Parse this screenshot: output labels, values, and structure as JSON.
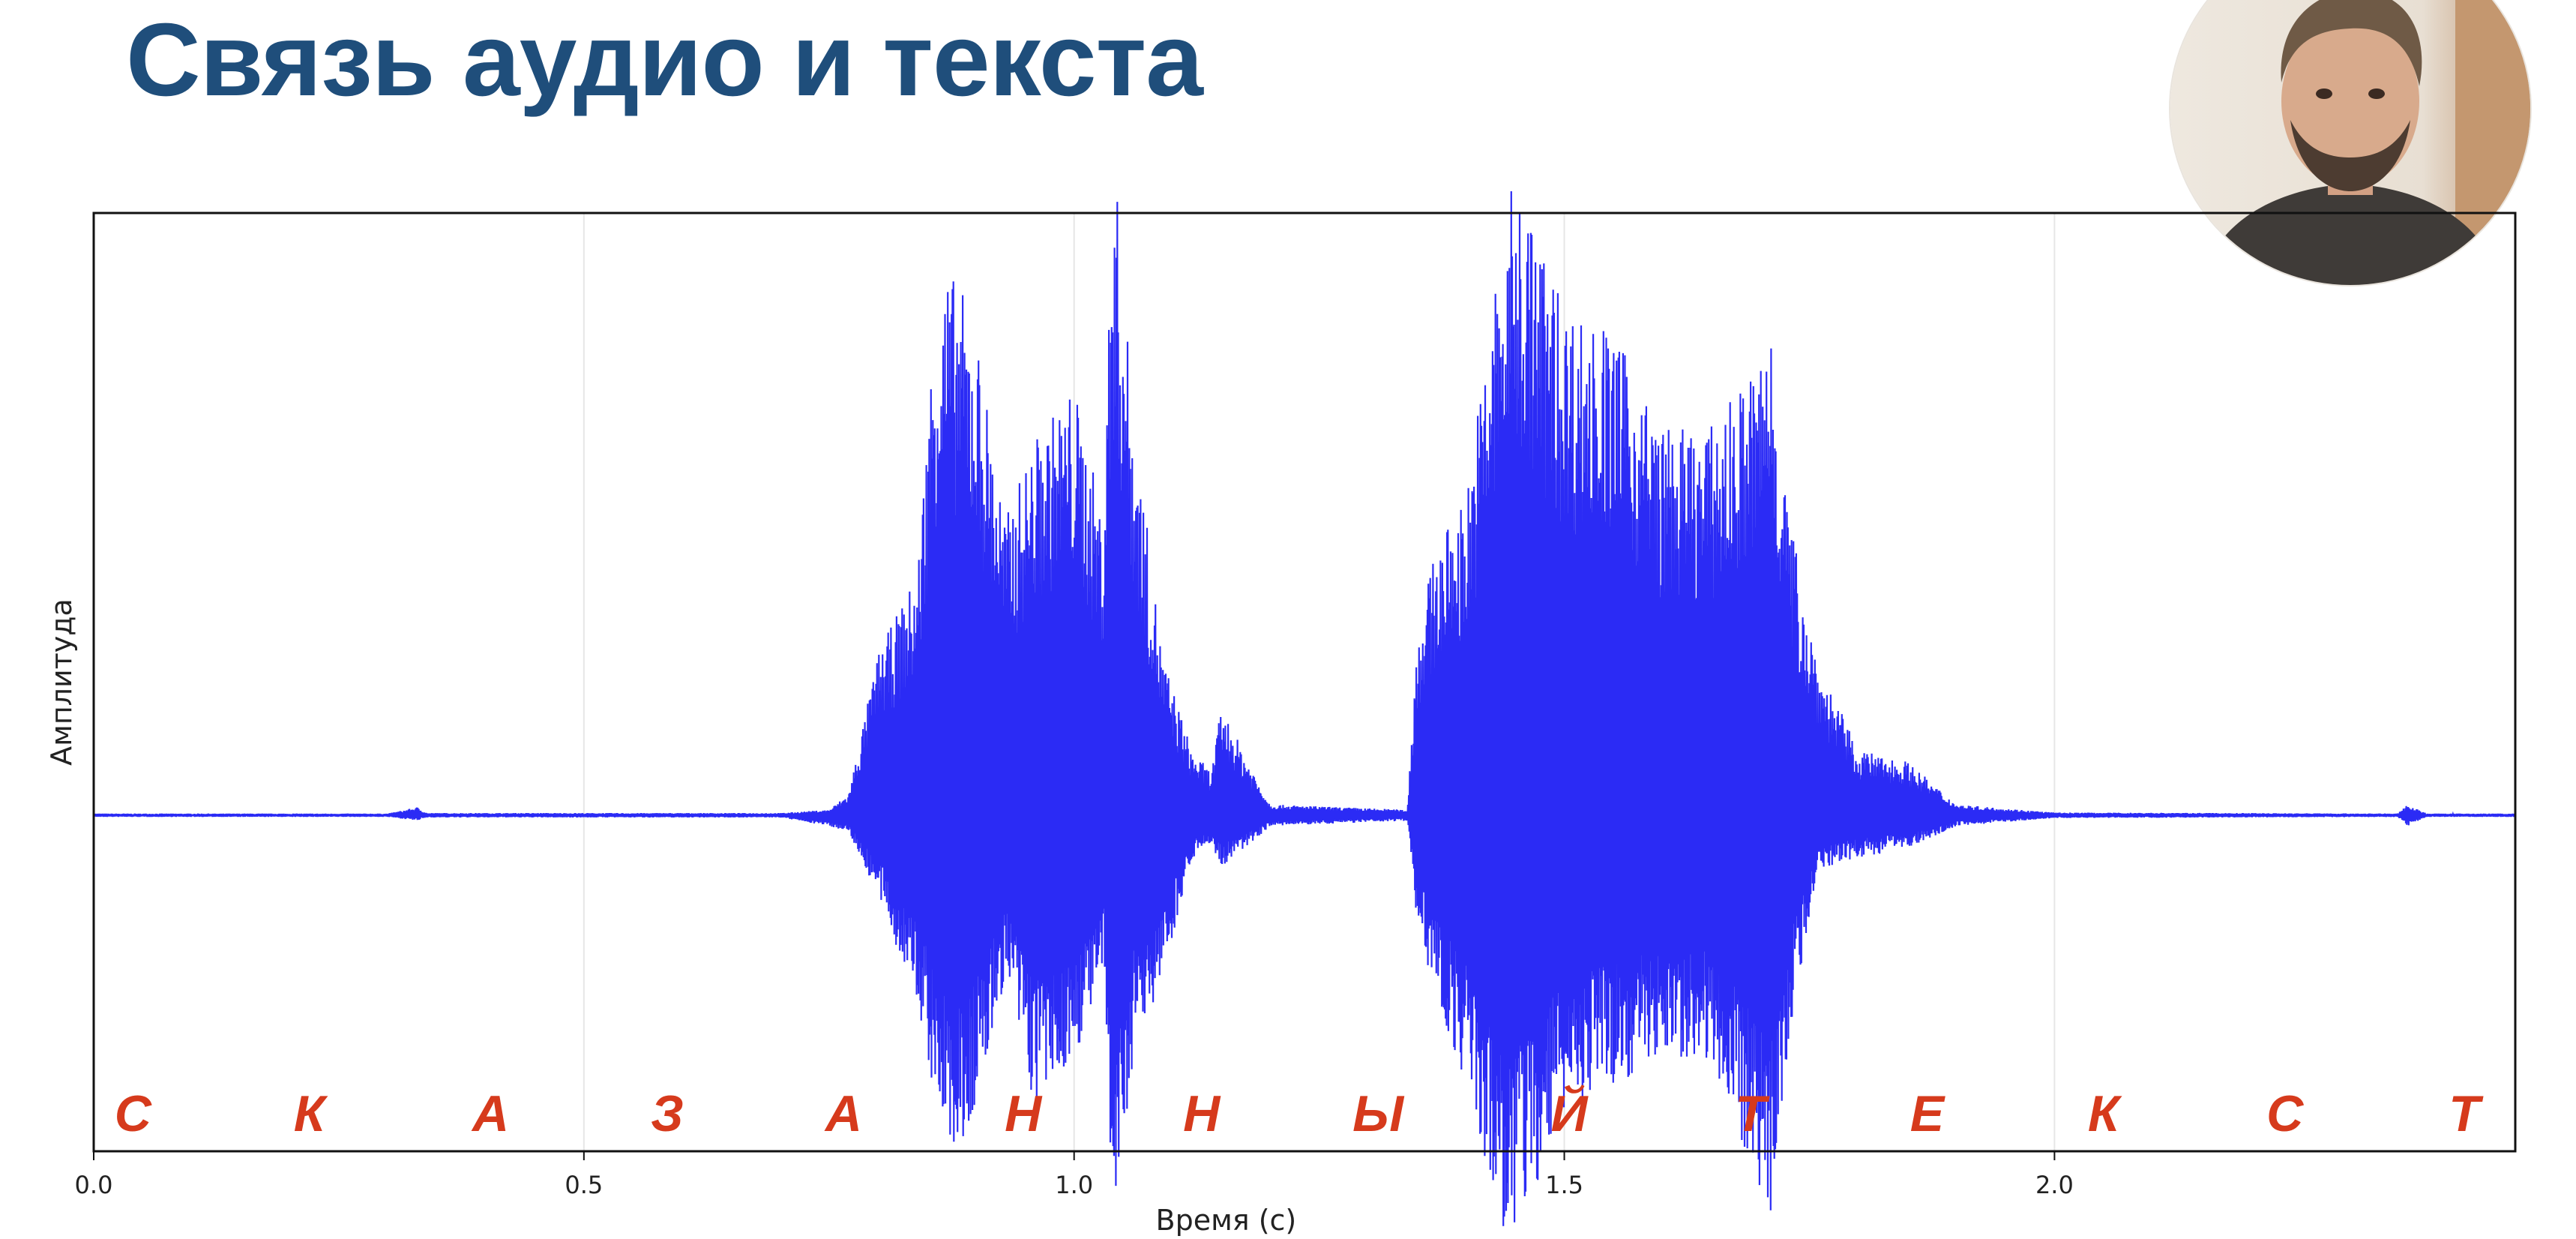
{
  "slide": {
    "title": "Связь аудио и текста"
  },
  "webcam": {
    "icon": "presenter-avatar-icon"
  },
  "colors": {
    "title": "#1f4e7b",
    "waveform": "#2b2bf5",
    "letters": "#d63a1c",
    "grid": "#e6e6e6"
  },
  "chart_data": {
    "type": "line",
    "xlabel": "Время (с)",
    "ylabel": "Амплитуда",
    "xlim": [
      0.0,
      2.47
    ],
    "ylim": [
      -1.0,
      1.0
    ],
    "xticks": [
      0.0,
      0.5,
      1.0,
      1.5,
      2.0
    ],
    "xtick_labels": [
      "0.0",
      "0.5",
      "1.0",
      "1.5",
      "2.0"
    ],
    "grid": "vertical",
    "series": [
      {
        "values_description_free_envelope": true,
        "envelope_time": [
          0.0,
          0.3,
          0.33,
          0.34,
          0.7,
          0.75,
          0.77,
          0.8,
          0.84,
          0.86,
          0.88,
          0.9,
          0.93,
          0.96,
          1.0,
          1.03,
          1.04,
          1.06,
          1.09,
          1.12,
          1.14,
          1.15,
          1.2,
          1.34,
          1.35,
          1.37,
          1.4,
          1.43,
          1.45,
          1.5,
          1.55,
          1.6,
          1.65,
          1.7,
          1.71,
          1.73,
          1.76,
          1.8,
          1.85,
          1.9,
          2.0,
          2.35,
          2.36,
          2.38,
          2.47
        ],
        "envelope_top": [
          0.003,
          0.003,
          0.015,
          0.004,
          0.004,
          0.01,
          0.04,
          0.3,
          0.45,
          1.0,
          1.0,
          0.9,
          0.55,
          0.7,
          0.8,
          0.55,
          1.25,
          0.75,
          0.3,
          0.12,
          0.08,
          0.2,
          0.02,
          0.01,
          0.35,
          0.5,
          0.6,
          1.0,
          1.2,
          0.95,
          0.9,
          0.72,
          0.72,
          0.85,
          0.95,
          0.55,
          0.28,
          0.12,
          0.1,
          0.02,
          0.005,
          0.003,
          0.02,
          0.003,
          0.003
        ],
        "envelope_bottom": [
          -0.003,
          -0.003,
          -0.01,
          -0.004,
          -0.004,
          -0.02,
          -0.03,
          -0.15,
          -0.35,
          -0.55,
          -0.65,
          -0.55,
          -0.3,
          -0.55,
          -0.45,
          -0.3,
          -0.8,
          -0.45,
          -0.3,
          -0.08,
          -0.05,
          -0.1,
          -0.02,
          -0.01,
          -0.2,
          -0.35,
          -0.5,
          -0.75,
          -0.8,
          -0.55,
          -0.5,
          -0.45,
          -0.45,
          -0.7,
          -0.75,
          -0.4,
          -0.1,
          -0.08,
          -0.06,
          -0.02,
          -0.005,
          -0.003,
          -0.02,
          -0.003,
          -0.003
        ]
      }
    ],
    "annotations": [
      {
        "text": "С",
        "x": 0.04
      },
      {
        "text": "К",
        "x": 0.22
      },
      {
        "text": "А",
        "x": 0.405
      },
      {
        "text": "З",
        "x": 0.585
      },
      {
        "text": "А",
        "x": 0.765
      },
      {
        "text": "Н",
        "x": 0.948
      },
      {
        "text": "Н",
        "x": 1.13
      },
      {
        "text": "Ы",
        "x": 1.31
      },
      {
        "text": "Й",
        "x": 1.505
      },
      {
        "text": "Т",
        "x": 1.69
      },
      {
        "text": "Е",
        "x": 1.87
      },
      {
        "text": "К",
        "x": 2.05
      },
      {
        "text": "С",
        "x": 2.235
      },
      {
        "text": "Т",
        "x": 2.418
      }
    ]
  }
}
